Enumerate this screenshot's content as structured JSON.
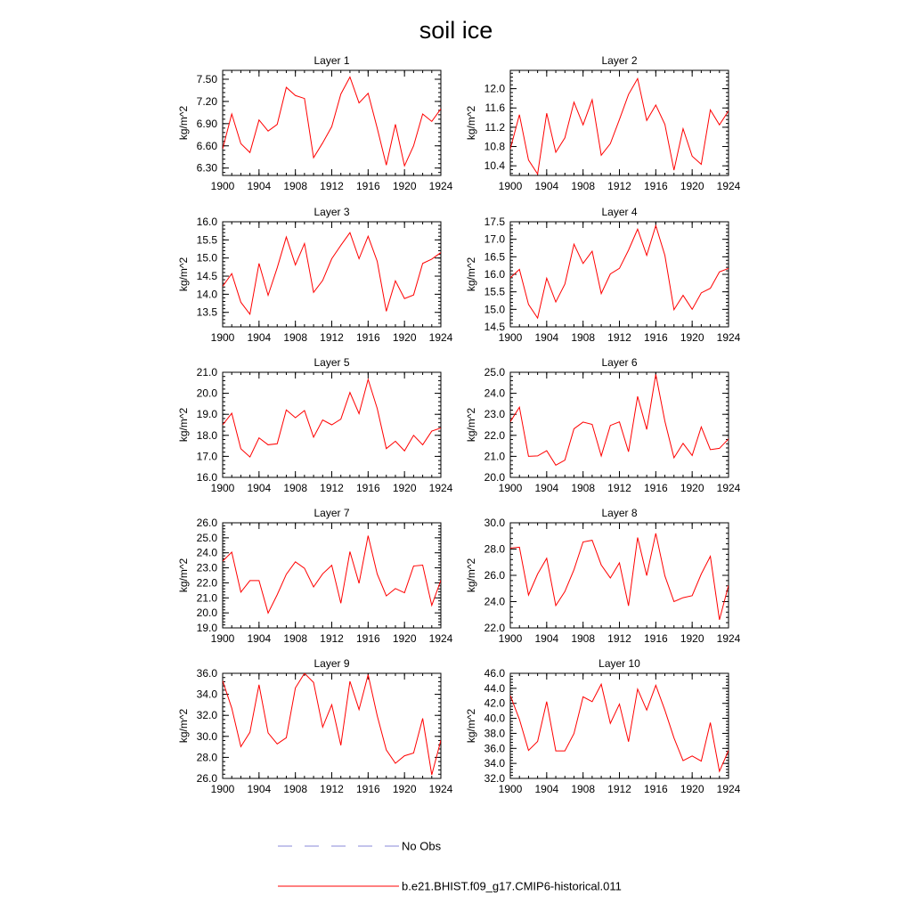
{
  "title": "soil ice",
  "colors": {
    "model": "#ff0000",
    "obs": "#8a8ad8"
  },
  "legend": {
    "obs_label": "No Obs",
    "model_label": "b.e21.BHIST.f09_g17.CMIP6-historical.011"
  },
  "chart_data": [
    {
      "type": "line",
      "title": "Layer 1",
      "xlabel": "",
      "ylabel": "kg/m^2",
      "xlim": [
        1900,
        1924
      ],
      "ylim": [
        6.2,
        7.62
      ],
      "xticks": [
        1900,
        1904,
        1908,
        1912,
        1916,
        1920,
        1924
      ],
      "xtick_labels": [
        "1900",
        "1904",
        "1908",
        "1912",
        "1916",
        "1920",
        "1924"
      ],
      "yticks": [
        6.3,
        6.6,
        6.9,
        7.2,
        7.5
      ],
      "ytick_labels": [
        "6.30",
        "6.60",
        "6.90",
        "7.20",
        "7.50"
      ],
      "series": [
        {
          "name": "b.e21.BHIST.f09_g17.CMIP6-historical.011",
          "x": [
            1900,
            1901,
            1902,
            1903,
            1904,
            1905,
            1906,
            1907,
            1908,
            1909,
            1910,
            1911,
            1912,
            1913,
            1914,
            1915,
            1916,
            1917,
            1918,
            1919,
            1920,
            1921,
            1922,
            1923,
            1924
          ],
          "values": [
            6.56,
            7.03,
            6.63,
            6.51,
            6.95,
            6.8,
            6.89,
            7.39,
            7.28,
            7.24,
            6.44,
            6.64,
            6.86,
            7.3,
            7.53,
            7.18,
            7.31,
            6.84,
            6.34,
            6.89,
            6.33,
            6.6,
            7.03,
            6.93,
            7.1
          ]
        }
      ]
    },
    {
      "type": "line",
      "title": "Layer 2",
      "xlabel": "",
      "ylabel": "kg/m^2",
      "xlim": [
        1900,
        1924
      ],
      "ylim": [
        10.2,
        12.38
      ],
      "xticks": [
        1900,
        1904,
        1908,
        1912,
        1916,
        1920,
        1924
      ],
      "xtick_labels": [
        "1900",
        "1904",
        "1908",
        "1912",
        "1916",
        "1920",
        "1924"
      ],
      "yticks": [
        10.4,
        10.8,
        11.2,
        11.6,
        12.0
      ],
      "ytick_labels": [
        "10.4",
        "10.8",
        "11.2",
        "11.6",
        "12.0"
      ],
      "series": [
        {
          "name": "b.e21.BHIST.f09_g17.CMIP6-historical.011",
          "x": [
            1900,
            1901,
            1902,
            1903,
            1904,
            1905,
            1906,
            1907,
            1908,
            1909,
            1910,
            1911,
            1912,
            1913,
            1914,
            1915,
            1916,
            1917,
            1918,
            1919,
            1920,
            1921,
            1922,
            1923,
            1924
          ],
          "values": [
            10.75,
            11.46,
            10.52,
            10.23,
            11.49,
            10.68,
            10.98,
            11.72,
            11.25,
            11.77,
            10.62,
            10.86,
            11.36,
            11.88,
            12.21,
            11.34,
            11.66,
            11.26,
            10.31,
            11.17,
            10.6,
            10.43,
            11.56,
            11.25,
            11.54
          ]
        }
      ]
    },
    {
      "type": "line",
      "title": "Layer 3",
      "xlabel": "",
      "ylabel": "kg/m^2",
      "xlim": [
        1900,
        1924
      ],
      "ylim": [
        13.1,
        16.0
      ],
      "xticks": [
        1900,
        1904,
        1908,
        1912,
        1916,
        1920,
        1924
      ],
      "xtick_labels": [
        "1900",
        "1904",
        "1908",
        "1912",
        "1916",
        "1920",
        "1924"
      ],
      "yticks": [
        13.5,
        14.0,
        14.5,
        15.0,
        15.5,
        16.0
      ],
      "ytick_labels": [
        "13.5",
        "14.0",
        "14.5",
        "15.0",
        "15.5",
        "16.0"
      ],
      "series": [
        {
          "name": "b.e21.BHIST.f09_g17.CMIP6-historical.011",
          "x": [
            1900,
            1901,
            1902,
            1903,
            1904,
            1905,
            1906,
            1907,
            1908,
            1909,
            1910,
            1911,
            1912,
            1913,
            1914,
            1915,
            1916,
            1917,
            1918,
            1919,
            1920,
            1921,
            1922,
            1923,
            1924
          ],
          "values": [
            14.22,
            14.57,
            13.78,
            13.45,
            14.85,
            13.97,
            14.73,
            15.58,
            14.81,
            15.4,
            14.05,
            14.38,
            14.98,
            15.35,
            15.7,
            14.98,
            15.6,
            14.91,
            13.53,
            14.37,
            13.88,
            13.98,
            14.85,
            14.97,
            15.15
          ]
        }
      ]
    },
    {
      "type": "line",
      "title": "Layer 4",
      "xlabel": "",
      "ylabel": "kg/m^2",
      "xlim": [
        1900,
        1924
      ],
      "ylim": [
        14.5,
        17.5
      ],
      "xticks": [
        1900,
        1904,
        1908,
        1912,
        1916,
        1920,
        1924
      ],
      "xtick_labels": [
        "1900",
        "1904",
        "1908",
        "1912",
        "1916",
        "1920",
        "1924"
      ],
      "yticks": [
        14.5,
        15.0,
        15.5,
        16.0,
        16.5,
        17.0,
        17.5
      ],
      "ytick_labels": [
        "14.5",
        "15.0",
        "15.5",
        "16.0",
        "16.5",
        "17.0",
        "17.5"
      ],
      "series": [
        {
          "name": "b.e21.BHIST.f09_g17.CMIP6-historical.011",
          "x": [
            1900,
            1901,
            1902,
            1903,
            1904,
            1905,
            1906,
            1907,
            1908,
            1909,
            1910,
            1911,
            1912,
            1913,
            1914,
            1915,
            1916,
            1917,
            1918,
            1919,
            1920,
            1921,
            1922,
            1923,
            1924
          ],
          "values": [
            15.9,
            16.14,
            15.14,
            14.75,
            15.89,
            15.21,
            15.72,
            16.86,
            16.31,
            16.66,
            15.45,
            16.01,
            16.17,
            16.69,
            17.29,
            16.54,
            17.39,
            16.54,
            14.99,
            15.4,
            15.0,
            15.47,
            15.6,
            16.07,
            16.17
          ]
        }
      ]
    },
    {
      "type": "line",
      "title": "Layer 5",
      "xlabel": "",
      "ylabel": "kg/m^2",
      "xlim": [
        1900,
        1924
      ],
      "ylim": [
        16.0,
        21.0
      ],
      "xticks": [
        1900,
        1904,
        1908,
        1912,
        1916,
        1920,
        1924
      ],
      "xtick_labels": [
        "1900",
        "1904",
        "1908",
        "1912",
        "1916",
        "1920",
        "1924"
      ],
      "yticks": [
        16.0,
        17.0,
        18.0,
        19.0,
        20.0,
        21.0
      ],
      "ytick_labels": [
        "16.0",
        "17.0",
        "18.0",
        "19.0",
        "20.0",
        "21.0"
      ],
      "series": [
        {
          "name": "b.e21.BHIST.f09_g17.CMIP6-historical.011",
          "x": [
            1900,
            1901,
            1902,
            1903,
            1904,
            1905,
            1906,
            1907,
            1908,
            1909,
            1910,
            1911,
            1912,
            1913,
            1914,
            1915,
            1916,
            1917,
            1918,
            1919,
            1920,
            1921,
            1922,
            1923,
            1924
          ],
          "values": [
            18.5,
            19.05,
            17.36,
            16.97,
            17.88,
            17.55,
            17.6,
            19.21,
            18.84,
            19.18,
            17.91,
            18.73,
            18.5,
            18.77,
            20.04,
            19.03,
            20.66,
            19.28,
            17.37,
            17.72,
            17.26,
            18.0,
            17.55,
            18.2,
            18.35
          ]
        }
      ]
    },
    {
      "type": "line",
      "title": "Layer 6",
      "xlabel": "",
      "ylabel": "kg/m^2",
      "xlim": [
        1900,
        1924
      ],
      "ylim": [
        20.0,
        25.0
      ],
      "xticks": [
        1900,
        1904,
        1908,
        1912,
        1916,
        1920,
        1924
      ],
      "xtick_labels": [
        "1900",
        "1904",
        "1908",
        "1912",
        "1916",
        "1920",
        "1924"
      ],
      "yticks": [
        20.0,
        21.0,
        22.0,
        23.0,
        24.0,
        25.0
      ],
      "ytick_labels": [
        "20.0",
        "21.0",
        "22.0",
        "23.0",
        "24.0",
        "25.0"
      ],
      "series": [
        {
          "name": "b.e21.BHIST.f09_g17.CMIP6-historical.011",
          "x": [
            1900,
            1901,
            1902,
            1903,
            1904,
            1905,
            1906,
            1907,
            1908,
            1909,
            1910,
            1911,
            1912,
            1913,
            1914,
            1915,
            1916,
            1917,
            1918,
            1919,
            1920,
            1921,
            1922,
            1923,
            1924
          ],
          "values": [
            22.65,
            23.34,
            21.0,
            21.02,
            21.27,
            20.58,
            20.82,
            22.31,
            22.63,
            22.52,
            21.02,
            22.47,
            22.64,
            21.22,
            23.85,
            22.28,
            24.9,
            22.67,
            20.93,
            21.62,
            21.04,
            22.4,
            21.32,
            21.38,
            21.83
          ]
        }
      ]
    },
    {
      "type": "line",
      "title": "Layer 7",
      "xlabel": "",
      "ylabel": "kg/m^2",
      "xlim": [
        1900,
        1924
      ],
      "ylim": [
        19.0,
        26.0
      ],
      "xticks": [
        1900,
        1904,
        1908,
        1912,
        1916,
        1920,
        1924
      ],
      "xtick_labels": [
        "1900",
        "1904",
        "1908",
        "1912",
        "1916",
        "1920",
        "1924"
      ],
      "yticks": [
        19.0,
        20.0,
        21.0,
        22.0,
        23.0,
        24.0,
        25.0,
        26.0
      ],
      "ytick_labels": [
        "19.0",
        "20.0",
        "21.0",
        "22.0",
        "23.0",
        "24.0",
        "25.0",
        "26.0"
      ],
      "series": [
        {
          "name": "b.e21.BHIST.f09_g17.CMIP6-historical.011",
          "x": [
            1900,
            1901,
            1902,
            1903,
            1904,
            1905,
            1906,
            1907,
            1908,
            1909,
            1910,
            1911,
            1912,
            1913,
            1914,
            1915,
            1916,
            1917,
            1918,
            1919,
            1920,
            1921,
            1922,
            1923,
            1924
          ],
          "values": [
            23.45,
            24.04,
            21.38,
            22.15,
            22.15,
            19.99,
            21.21,
            22.57,
            23.4,
            22.97,
            21.73,
            22.6,
            23.17,
            20.64,
            24.08,
            21.97,
            25.14,
            22.59,
            21.13,
            21.62,
            21.34,
            23.12,
            23.18,
            20.5,
            22.17
          ]
        }
      ]
    },
    {
      "type": "line",
      "title": "Layer 8",
      "xlabel": "",
      "ylabel": "kg/m^2",
      "xlim": [
        1900,
        1924
      ],
      "ylim": [
        22.0,
        30.0
      ],
      "xticks": [
        1900,
        1904,
        1908,
        1912,
        1916,
        1920,
        1924
      ],
      "xtick_labels": [
        "1900",
        "1904",
        "1908",
        "1912",
        "1916",
        "1920",
        "1924"
      ],
      "yticks": [
        22.0,
        24.0,
        26.0,
        28.0,
        30.0
      ],
      "ytick_labels": [
        "22.0",
        "24.0",
        "26.0",
        "28.0",
        "30.0"
      ],
      "series": [
        {
          "name": "b.e21.BHIST.f09_g17.CMIP6-historical.011",
          "x": [
            1900,
            1901,
            1902,
            1903,
            1904,
            1905,
            1906,
            1907,
            1908,
            1909,
            1910,
            1911,
            1912,
            1913,
            1914,
            1915,
            1916,
            1917,
            1918,
            1919,
            1920,
            1921,
            1922,
            1923,
            1924
          ],
          "values": [
            28.08,
            28.14,
            24.5,
            26.1,
            27.3,
            23.7,
            24.77,
            26.43,
            28.54,
            28.67,
            26.79,
            25.8,
            26.95,
            23.68,
            28.88,
            25.98,
            29.2,
            25.96,
            24.0,
            24.3,
            24.45,
            26.1,
            27.45,
            22.62,
            25.24
          ]
        }
      ]
    },
    {
      "type": "line",
      "title": "Layer 9",
      "xlabel": "",
      "ylabel": "kg/m^2",
      "xlim": [
        1900,
        1924
      ],
      "ylim": [
        26.0,
        36.0
      ],
      "xticks": [
        1900,
        1904,
        1908,
        1912,
        1916,
        1920,
        1924
      ],
      "xtick_labels": [
        "1900",
        "1904",
        "1908",
        "1912",
        "1916",
        "1920",
        "1924"
      ],
      "yticks": [
        26.0,
        28.0,
        30.0,
        32.0,
        34.0,
        36.0
      ],
      "ytick_labels": [
        "26.0",
        "28.0",
        "30.0",
        "32.0",
        "34.0",
        "36.0"
      ],
      "series": [
        {
          "name": "b.e21.BHIST.f09_g17.CMIP6-historical.011",
          "x": [
            1900,
            1901,
            1902,
            1903,
            1904,
            1905,
            1906,
            1907,
            1908,
            1909,
            1910,
            1911,
            1912,
            1913,
            1914,
            1915,
            1916,
            1917,
            1918,
            1919,
            1920,
            1921,
            1922,
            1923,
            1924
          ],
          "values": [
            35.29,
            32.69,
            29.02,
            30.39,
            34.91,
            30.33,
            29.28,
            29.87,
            34.61,
            36.0,
            35.13,
            30.88,
            33.01,
            29.15,
            35.24,
            32.55,
            35.87,
            31.96,
            28.71,
            27.44,
            28.15,
            28.42,
            31.71,
            26.34,
            29.63
          ]
        }
      ]
    },
    {
      "type": "line",
      "title": "Layer 10",
      "xlabel": "",
      "ylabel": "kg/m^2",
      "xlim": [
        1900,
        1924
      ],
      "ylim": [
        32.0,
        46.0
      ],
      "xticks": [
        1900,
        1904,
        1908,
        1912,
        1916,
        1920,
        1924
      ],
      "xtick_labels": [
        "1900",
        "1904",
        "1908",
        "1912",
        "1916",
        "1920",
        "1924"
      ],
      "yticks": [
        32.0,
        34.0,
        36.0,
        38.0,
        40.0,
        42.0,
        44.0,
        46.0
      ],
      "ytick_labels": [
        "32.0",
        "34.0",
        "36.0",
        "38.0",
        "40.0",
        "42.0",
        "44.0",
        "46.0"
      ],
      "series": [
        {
          "name": "b.e21.BHIST.f09_g17.CMIP6-historical.011",
          "x": [
            1900,
            1901,
            1902,
            1903,
            1904,
            1905,
            1906,
            1907,
            1908,
            1909,
            1910,
            1911,
            1912,
            1913,
            1914,
            1915,
            1916,
            1917,
            1918,
            1919,
            1920,
            1921,
            1922,
            1923,
            1924
          ],
          "values": [
            43.03,
            39.87,
            35.73,
            36.92,
            42.23,
            35.66,
            35.66,
            37.98,
            42.87,
            42.22,
            44.55,
            39.33,
            41.9,
            36.89,
            43.9,
            41.1,
            44.4,
            41.08,
            37.39,
            34.36,
            34.99,
            34.3,
            39.43,
            32.94,
            35.73
          ]
        }
      ]
    }
  ]
}
